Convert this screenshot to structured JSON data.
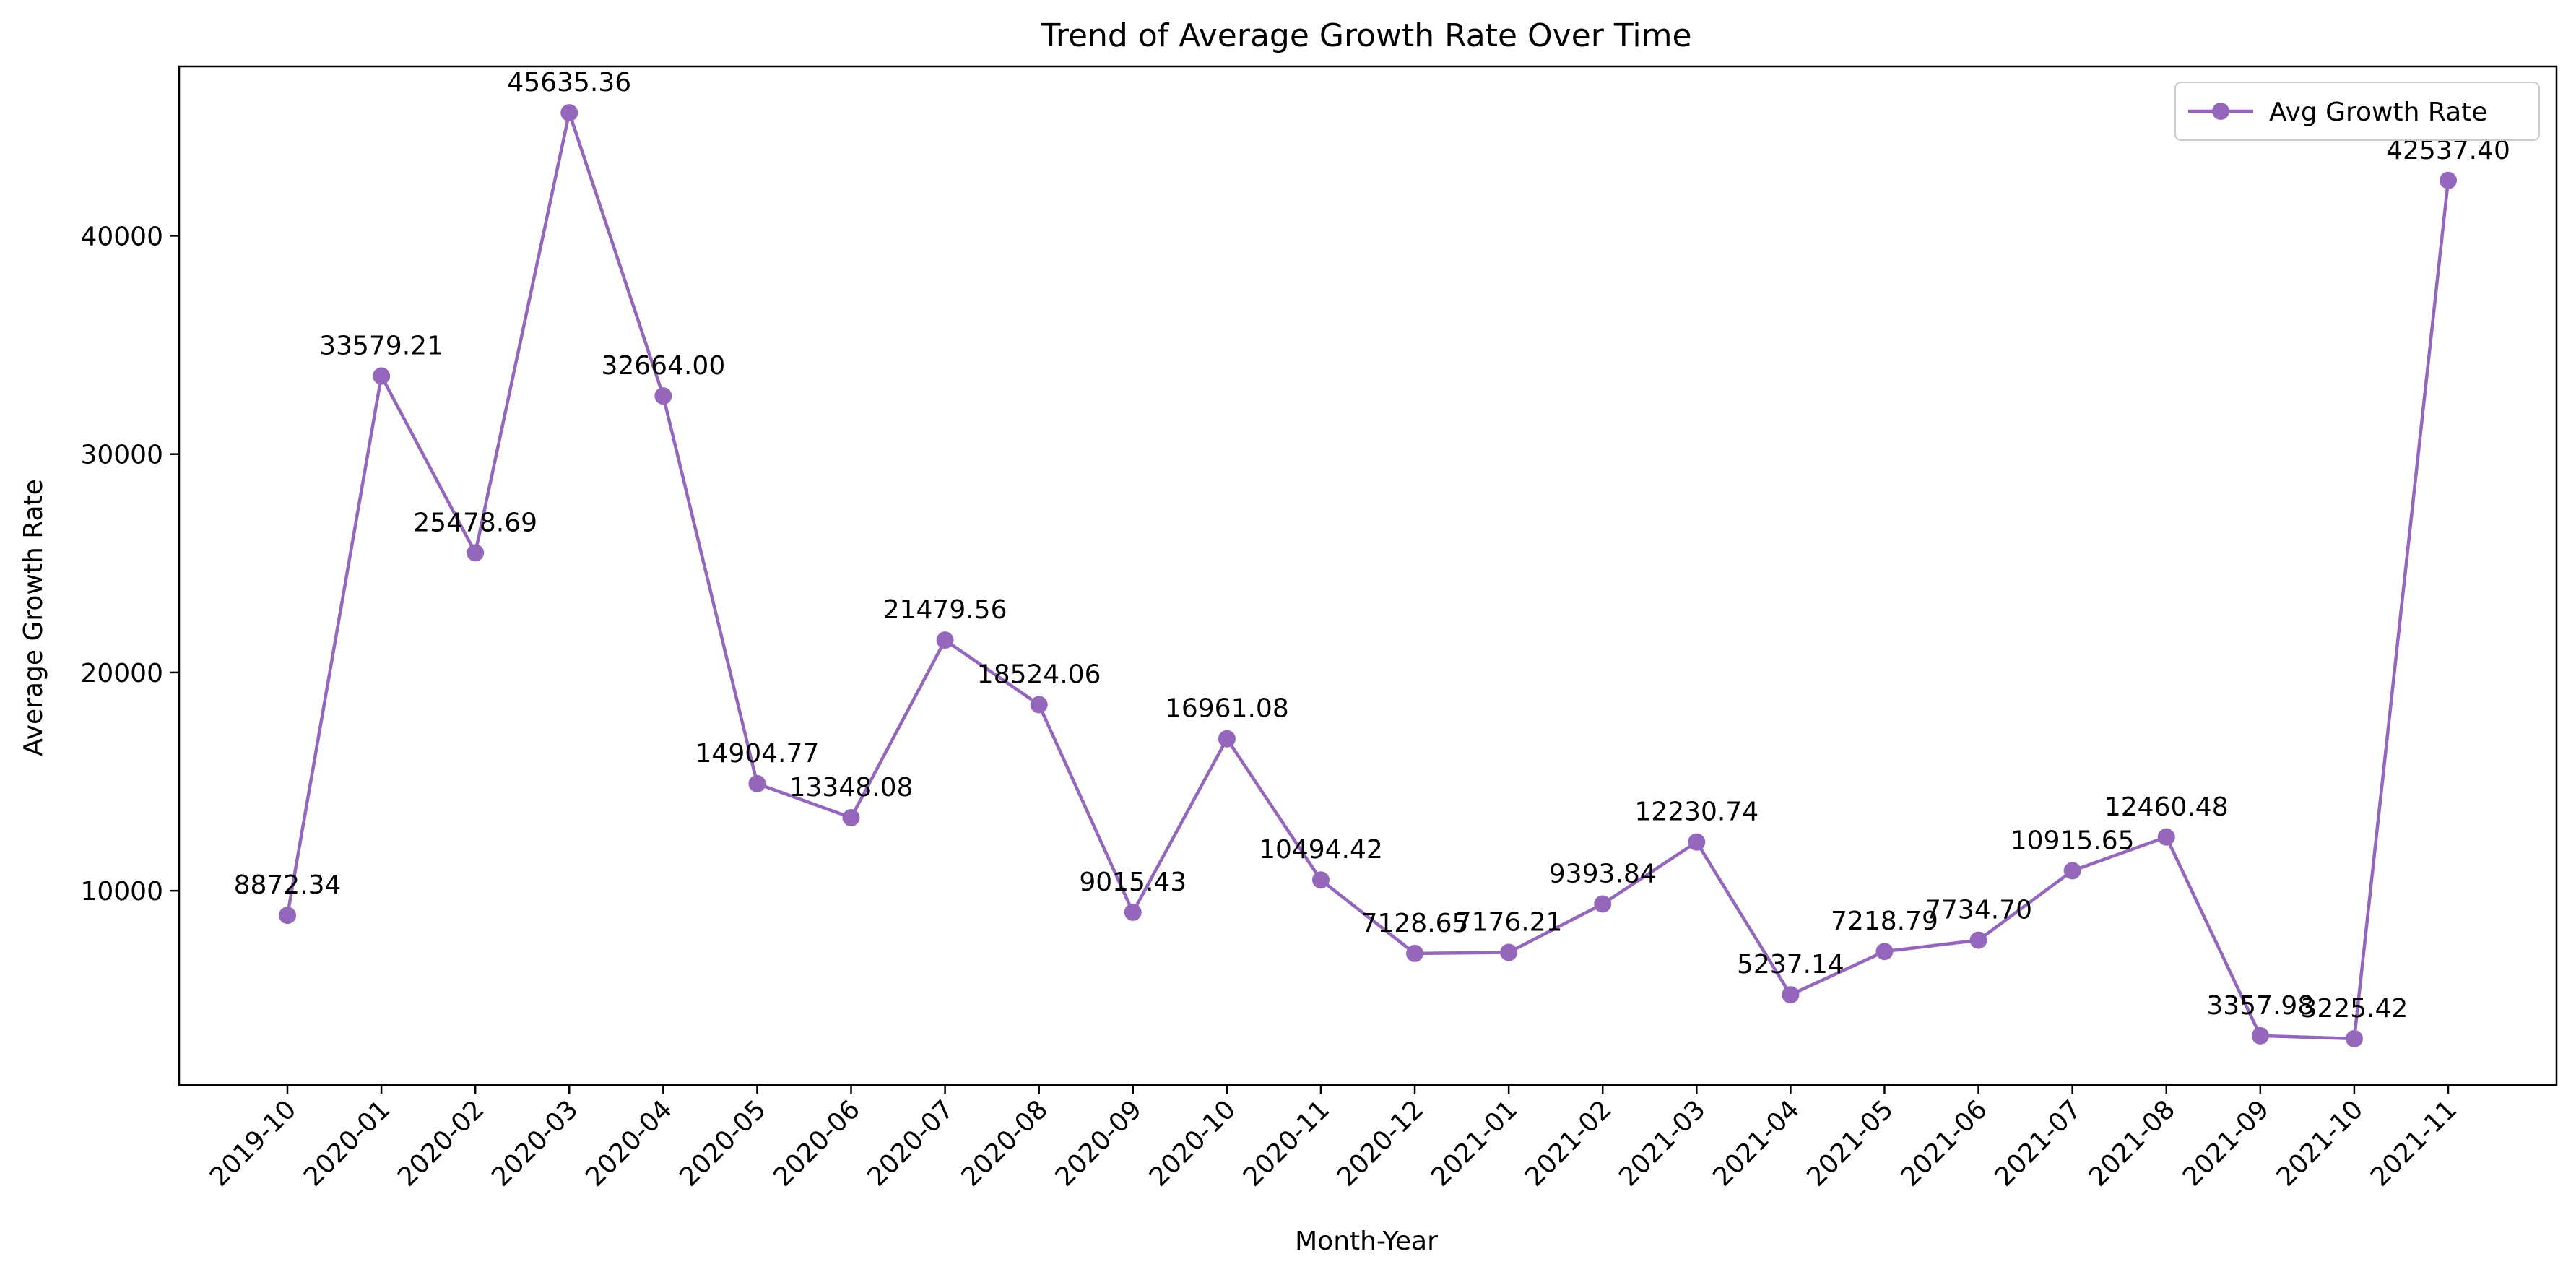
{
  "chart_data": {
    "type": "line",
    "title": "Trend of Average Growth Rate Over Time",
    "xlabel": "Month-Year",
    "ylabel": "Average Growth Rate",
    "categories": [
      "2019-10",
      "2020-01",
      "2020-02",
      "2020-03",
      "2020-04",
      "2020-05",
      "2020-06",
      "2020-07",
      "2020-08",
      "2020-09",
      "2020-10",
      "2020-11",
      "2020-12",
      "2021-01",
      "2021-02",
      "2021-03",
      "2021-04",
      "2021-05",
      "2021-06",
      "2021-07",
      "2021-08",
      "2021-09",
      "2021-10",
      "2021-11"
    ],
    "series": [
      {
        "name": "Avg Growth Rate",
        "color": "#9467bd",
        "marker": "circle",
        "values": [
          8872.34,
          33579.21,
          25478.69,
          45635.36,
          32664.0,
          14904.77,
          13348.08,
          21479.56,
          18524.06,
          9015.43,
          16961.08,
          10494.42,
          7128.65,
          7176.21,
          9393.84,
          12230.74,
          5237.14,
          7218.79,
          7734.7,
          10915.65,
          12460.48,
          3357.98,
          3225.42,
          42537.4
        ],
        "data_labels": [
          "8872.34",
          "33579.21",
          "25478.69",
          "45635.36",
          "32664.00",
          "14904.77",
          "13348.08",
          "21479.56",
          "18524.06",
          "9015.43",
          "16961.08",
          "10494.42",
          "7128.65",
          "7176.21",
          "9393.84",
          "12230.74",
          "5237.14",
          "7218.79",
          "7734.70",
          "10915.65",
          "12460.48",
          "3357.98",
          "3225.42",
          "42537.40"
        ]
      }
    ],
    "yticks": [
      10000,
      20000,
      30000,
      40000
    ],
    "ylim": [
      1104,
      47757
    ],
    "grid": false,
    "legend": "top-right",
    "x_tick_rotation": 45
  }
}
